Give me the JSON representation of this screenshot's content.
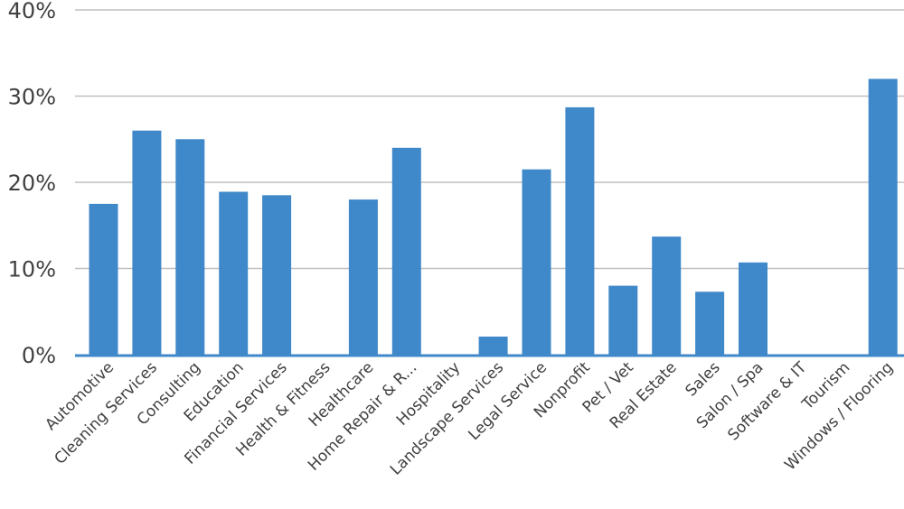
{
  "chart_data": {
    "type": "bar",
    "categories": [
      "Automotive",
      "Cleaning Services",
      "Consulting",
      "Education",
      "Financial Services",
      "Health & Fitness",
      "Healthcare",
      "Home Repair & R...",
      "Hospitality",
      "Landscape Services",
      "Legal Service",
      "Nonprofit",
      "Pet / Vet",
      "Real Estate",
      "Sales",
      "Salon / Spa",
      "Software & IT",
      "Tourism",
      "Windows / Flooring"
    ],
    "values": [
      17.5,
      26.0,
      25.0,
      18.9,
      18.5,
      0,
      18.0,
      24.0,
      0,
      2.1,
      21.5,
      28.7,
      8.0,
      13.7,
      7.3,
      10.7,
      0,
      0,
      32.0
    ],
    "ylim": [
      0,
      40
    ],
    "yticks": [
      0,
      10,
      20,
      30,
      40
    ],
    "ytick_labels": [
      "0%",
      "10%",
      "20%",
      "30%",
      "40%"
    ],
    "grid": true,
    "colors": {
      "bar": "#3f88c9",
      "grid": "#bfbfbf",
      "axis": "#3f88c9",
      "text": "#404040"
    }
  }
}
